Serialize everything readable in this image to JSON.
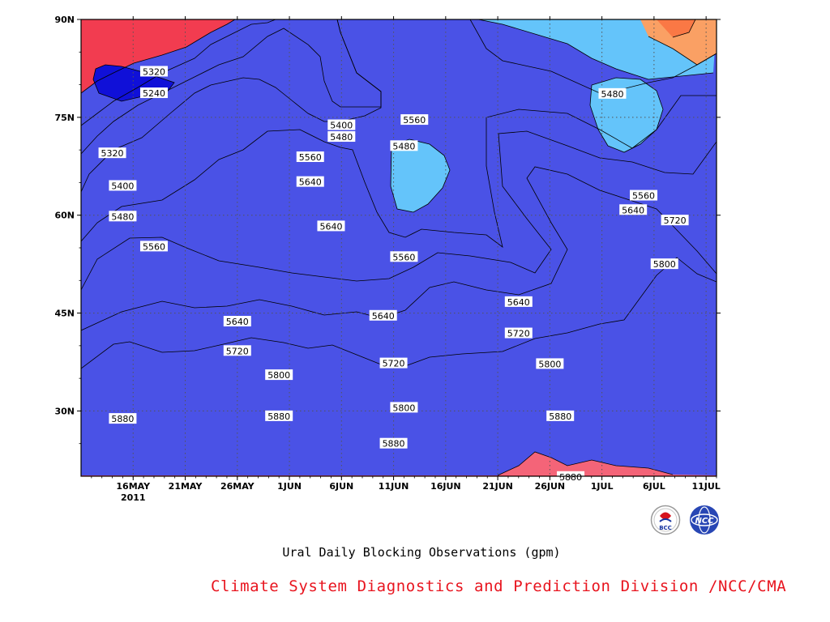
{
  "chart_data": {
    "type": "heatmap",
    "title": "Ural Daily Blocking Observations (gpm)",
    "x_tick_labels": [
      "16MAY",
      "21MAY",
      "26MAY",
      "1JUN",
      "6JUN",
      "11JUN",
      "16JUN",
      "21JUN",
      "26JUN",
      "1JUL",
      "6JUL",
      "11JUL"
    ],
    "x_year_label": "2011",
    "x_range": [
      "2011-05-11",
      "2011-07-11"
    ],
    "y_tick_labels": [
      "90N",
      "75N",
      "60N",
      "45N",
      "30N"
    ],
    "y_range": [
      20,
      90
    ],
    "contour_levels": [
      5240,
      5320,
      5400,
      5480,
      5560,
      5640,
      5720,
      5800,
      5880
    ],
    "band_colors": [
      "#1010d8",
      "#3c3ce0",
      "#4a52e6",
      "#5a96e6",
      "#64c4fa",
      "#fafa64",
      "#fae1a0",
      "#faa064",
      "#fa7845",
      "#f46e78",
      "#f23c50"
    ],
    "contour_labels": [
      {
        "value": "5320",
        "x": "2011-05-18",
        "y": 82
      },
      {
        "value": "5240",
        "x": "2011-05-18",
        "y": 78.7
      },
      {
        "value": "5320",
        "x": "2011-05-14",
        "y": 69.5
      },
      {
        "value": "5400",
        "x": "2011-05-15",
        "y": 64.5
      },
      {
        "value": "5480",
        "x": "2011-05-15",
        "y": 59.8
      },
      {
        "value": "5560",
        "x": "2011-05-18",
        "y": 55.2
      },
      {
        "value": "5640",
        "x": "2011-05-26",
        "y": 43.7
      },
      {
        "value": "5720",
        "x": "2011-05-26",
        "y": 39.2
      },
      {
        "value": "5800",
        "x": "2011-05-30",
        "y": 35.5
      },
      {
        "value": "5880",
        "x": "2011-05-15",
        "y": 28.8
      },
      {
        "value": "5880",
        "x": "2011-05-30",
        "y": 29.2
      },
      {
        "value": "5400",
        "x": "2011-06-05",
        "y": 73.8
      },
      {
        "value": "5480",
        "x": "2011-06-05",
        "y": 72.0
      },
      {
        "value": "5560",
        "x": "2011-06-02",
        "y": 68.9
      },
      {
        "value": "5640",
        "x": "2011-06-02",
        "y": 65.1
      },
      {
        "value": "5640",
        "x": "2011-06-04",
        "y": 58.3
      },
      {
        "value": "5560",
        "x": "2011-06-12",
        "y": 74.6
      },
      {
        "value": "5480",
        "x": "2011-06-11",
        "y": 70.6
      },
      {
        "value": "5560",
        "x": "2011-06-11",
        "y": 53.6
      },
      {
        "value": "5640",
        "x": "2011-06-09",
        "y": 44.6
      },
      {
        "value": "5720",
        "x": "2011-06-10",
        "y": 37.3
      },
      {
        "value": "5800",
        "x": "2011-06-11",
        "y": 30.5
      },
      {
        "value": "5880",
        "x": "2011-06-10",
        "y": 25.0
      },
      {
        "value": "5640",
        "x": "2011-06-22",
        "y": 46.7
      },
      {
        "value": "5720",
        "x": "2011-06-22",
        "y": 41.9
      },
      {
        "value": "5800",
        "x": "2011-06-25",
        "y": 37.2
      },
      {
        "value": "5880",
        "x": "2011-06-26",
        "y": 29.2
      },
      {
        "value": "5880",
        "x": "2011-06-27",
        "y": 19.9
      },
      {
        "value": "5480",
        "x": "2011-07-01",
        "y": 78.6
      },
      {
        "value": "5560",
        "x": "2011-07-04",
        "y": 63.0
      },
      {
        "value": "5640",
        "x": "2011-07-03",
        "y": 60.8
      },
      {
        "value": "5720",
        "x": "2011-07-07",
        "y": 59.2
      },
      {
        "value": "5800",
        "x": "2011-07-06",
        "y": 52.5
      }
    ]
  },
  "footer": {
    "caption": "Ural Daily Blocking Observations (gpm)",
    "credit": "Climate System Diagnostics and Prediction Division /NCC/CMA",
    "credit_color": "#e8141e",
    "logos": [
      {
        "name": "bcc-logo",
        "text": "BCC"
      },
      {
        "name": "ncc-logo",
        "text": "NCC"
      }
    ]
  }
}
